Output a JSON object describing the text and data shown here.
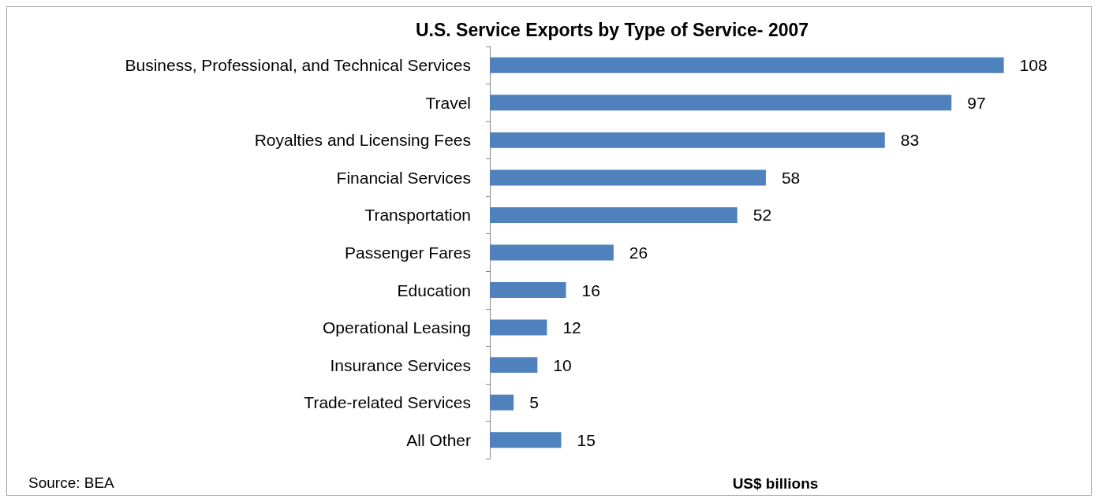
{
  "chart_data": {
    "type": "bar",
    "orientation": "horizontal",
    "title": "U.S. Service Exports by Type of Service- 2007",
    "xlabel": "US$ billions",
    "categories": [
      "Business, Professional, and Technical Services",
      "Travel",
      "Royalties and Licensing Fees",
      "Financial Services",
      "Transportation",
      "Passenger Fares",
      "Education",
      "Operational Leasing",
      "Insurance Services",
      "Trade-related Services",
      "All Other"
    ],
    "values": [
      108,
      97,
      83,
      58,
      52,
      26,
      16,
      12,
      10,
      5,
      15
    ],
    "color": "#4f81bd",
    "data_labels": true,
    "grid": false,
    "tick_labels": "y",
    "annotations": [
      "Source: BEA"
    ]
  }
}
